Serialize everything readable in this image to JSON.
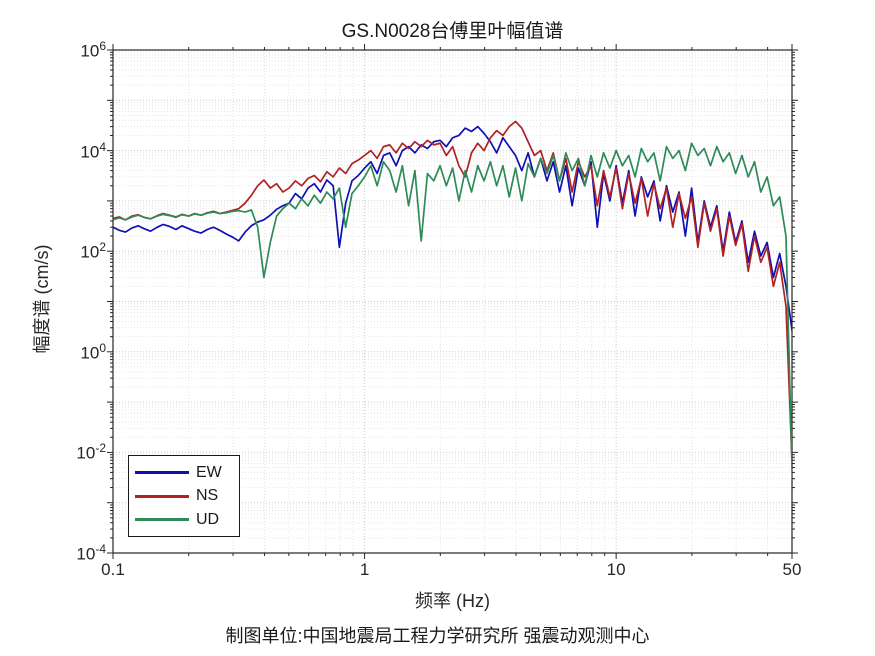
{
  "caption": "制图单位:中国地震局工程力学研究所 强震动观测中心",
  "axes_color": "#262626",
  "chart_data": {
    "type": "line",
    "title": "GS.N0028台傅里叶幅值谱",
    "xlabel": "频率 (Hz)",
    "ylabel": "幅度谱 (cm/s)",
    "xscale": "log",
    "yscale": "log",
    "xlim": [
      0.1,
      50
    ],
    "ylim": [
      0.0001,
      1000000
    ],
    "xticks": {
      "values": [
        0.1,
        1,
        10,
        50
      ],
      "labels": [
        "0.1",
        "1",
        "10",
        "50"
      ]
    },
    "yticks": {
      "base": "10",
      "exponents": [
        6,
        4,
        2,
        0,
        -2,
        -4
      ]
    },
    "grid": {
      "major": true,
      "minor": true,
      "style": "dotted",
      "major_color": "#c9c9c9",
      "minor_color": "#e4e4e4"
    },
    "legend": {
      "position": "southwest",
      "items": [
        "EW",
        "NS",
        "UD"
      ]
    },
    "x": [
      0.1,
      0.106,
      0.112,
      0.119,
      0.126,
      0.133,
      0.141,
      0.15,
      0.158,
      0.168,
      0.178,
      0.188,
      0.2,
      0.211,
      0.224,
      0.237,
      0.251,
      0.266,
      0.282,
      0.299,
      0.316,
      0.335,
      0.355,
      0.376,
      0.398,
      0.422,
      0.447,
      0.473,
      0.501,
      0.531,
      0.562,
      0.596,
      0.631,
      0.668,
      0.708,
      0.75,
      0.794,
      0.841,
      0.891,
      0.944,
      1.0,
      1.059,
      1.122,
      1.189,
      1.259,
      1.334,
      1.413,
      1.496,
      1.585,
      1.679,
      1.778,
      1.884,
      1.995,
      2.113,
      2.239,
      2.371,
      2.512,
      2.661,
      2.818,
      2.985,
      3.162,
      3.35,
      3.548,
      3.758,
      3.981,
      4.217,
      4.467,
      4.732,
      5.012,
      5.309,
      5.623,
      5.957,
      6.31,
      6.683,
      7.079,
      7.499,
      7.943,
      8.414,
      8.913,
      9.441,
      10.0,
      10.59,
      11.22,
      11.89,
      12.59,
      13.34,
      14.13,
      14.96,
      15.85,
      16.79,
      17.78,
      18.84,
      19.95,
      21.13,
      22.39,
      23.71,
      25.12,
      26.61,
      28.18,
      29.85,
      31.62,
      33.5,
      35.48,
      37.58,
      39.81,
      42.17,
      44.67,
      47.32,
      50.12
    ],
    "series": [
      {
        "name": "EW",
        "color": "#0f0fb4",
        "values": [
          300,
          260,
          240,
          290,
          320,
          280,
          250,
          300,
          340,
          310,
          270,
          320,
          280,
          250,
          230,
          270,
          300,
          260,
          220,
          190,
          160,
          240,
          320,
          380,
          420,
          520,
          680,
          800,
          900,
          1400,
          1100,
          1800,
          2200,
          1500,
          2600,
          2000,
          120,
          900,
          2500,
          3200,
          4500,
          6000,
          3500,
          8000,
          9000,
          5000,
          10000,
          12000,
          9000,
          13000,
          11000,
          15000,
          16000,
          12000,
          18000,
          20000,
          28000,
          24000,
          30000,
          22000,
          15000,
          9000,
          18000,
          12000,
          8000,
          4000,
          9000,
          3000,
          7000,
          2500,
          6000,
          1500,
          5000,
          800,
          4500,
          2000,
          6000,
          300,
          3500,
          1000,
          5000,
          900,
          4000,
          500,
          3000,
          1200,
          2500,
          400,
          2000,
          600,
          1500,
          200,
          1800,
          150,
          1000,
          300,
          800,
          100,
          600,
          150,
          400,
          60,
          250,
          80,
          150,
          30,
          90,
          20,
          2.5
        ]
      },
      {
        "name": "NS",
        "color": "#b22222",
        "values": [
          450,
          480,
          420,
          500,
          530,
          470,
          440,
          510,
          560,
          520,
          480,
          540,
          500,
          560,
          520,
          580,
          620,
          560,
          600,
          650,
          700,
          900,
          1300,
          2000,
          2600,
          1800,
          2200,
          1500,
          1800,
          2500,
          2000,
          2800,
          3200,
          2400,
          3800,
          3000,
          4500,
          3500,
          5500,
          6500,
          8000,
          10000,
          7000,
          12000,
          13000,
          9000,
          14000,
          11000,
          15000,
          12000,
          16000,
          13000,
          14000,
          8000,
          12000,
          5000,
          3000,
          9000,
          14000,
          10000,
          18000,
          25000,
          20000,
          30000,
          38000,
          28000,
          15000,
          8000,
          10000,
          4000,
          9000,
          2500,
          7000,
          1500,
          6000,
          3000,
          5000,
          800,
          4000,
          1200,
          4500,
          700,
          3500,
          900,
          2800,
          500,
          2200,
          700,
          1800,
          300,
          1400,
          450,
          1200,
          120,
          900,
          250,
          700,
          80,
          500,
          130,
          350,
          40,
          200,
          60,
          120,
          20,
          60,
          8,
          0.005
        ]
      },
      {
        "name": "UD",
        "color": "#2e8b57",
        "values": [
          420,
          460,
          420,
          480,
          520,
          470,
          440,
          500,
          540,
          510,
          470,
          530,
          500,
          550,
          520,
          570,
          600,
          560,
          580,
          620,
          640,
          600,
          660,
          300,
          30,
          150,
          500,
          700,
          900,
          700,
          1100,
          800,
          1300,
          900,
          1500,
          1100,
          1800,
          300,
          1400,
          2000,
          3000,
          5000,
          2000,
          6000,
          4000,
          1500,
          5000,
          800,
          4000,
          160,
          3500,
          2500,
          5000,
          2000,
          4500,
          1000,
          4000,
          1500,
          5000,
          2500,
          6000,
          2000,
          5000,
          1200,
          4500,
          1000,
          5500,
          3000,
          7000,
          3500,
          8000,
          2500,
          9000,
          4000,
          7000,
          2000,
          8000,
          3000,
          9000,
          4500,
          10000,
          5000,
          8000,
          3000,
          11000,
          6000,
          9000,
          2500,
          12000,
          7000,
          10000,
          4000,
          14000,
          8000,
          11000,
          5000,
          12000,
          6000,
          9000,
          3500,
          8000,
          3000,
          6000,
          1500,
          3000,
          800,
          1200,
          200,
          0.003
        ]
      }
    ]
  }
}
